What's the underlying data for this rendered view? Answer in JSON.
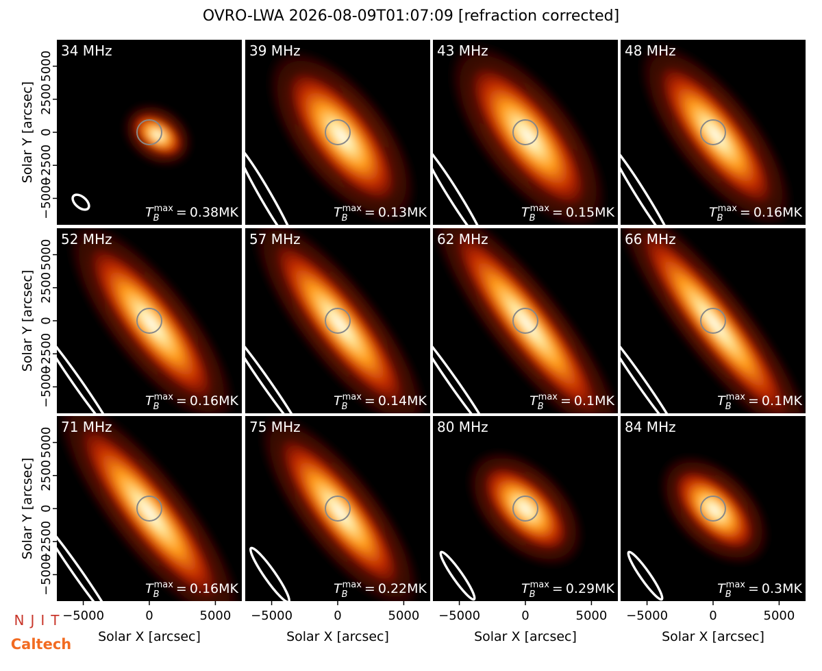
{
  "chart_data": {
    "type": "image-grid",
    "title": "OVRO-LWA 2026-08-09T01:07:09 [refraction corrected]",
    "xlabel": "Solar X [arcsec]",
    "ylabel": "Solar Y [arcsec]",
    "categories": [
      "34 MHz",
      "39 MHz",
      "43 MHz",
      "48 MHz",
      "52 MHz",
      "57 MHz",
      "62 MHz",
      "66 MHz",
      "71 MHz",
      "75 MHz",
      "80 MHz",
      "84 MHz"
    ],
    "values": [
      0.38,
      0.13,
      0.15,
      0.16,
      0.16,
      0.14,
      0.1,
      0.1,
      0.16,
      0.22,
      0.29,
      0.3
    ],
    "value_labels": [
      "0.38MK",
      "0.13MK",
      "0.15MK",
      "0.16MK",
      "0.16MK",
      "0.14MK",
      "0.1MK",
      "0.1MK",
      "0.16MK",
      "0.22MK",
      "0.29MK",
      "0.3MK"
    ],
    "tb_symbol": "T",
    "tb_subscript": "B",
    "tb_superscript": "max",
    "tb_relation": "=",
    "xlim": [
      -7000,
      7000
    ],
    "ylim": [
      -7000,
      7000
    ],
    "xticks": [
      {
        "value": -5000,
        "label": "−5000"
      },
      0,
      5000
    ],
    "yticks": [
      {
        "value": -5000,
        "label": "−5000"
      },
      {
        "value": -2500,
        "label": "−2500"
      },
      0,
      2500,
      5000
    ],
    "logos": [
      "NJIT",
      "Caltech"
    ]
  }
}
